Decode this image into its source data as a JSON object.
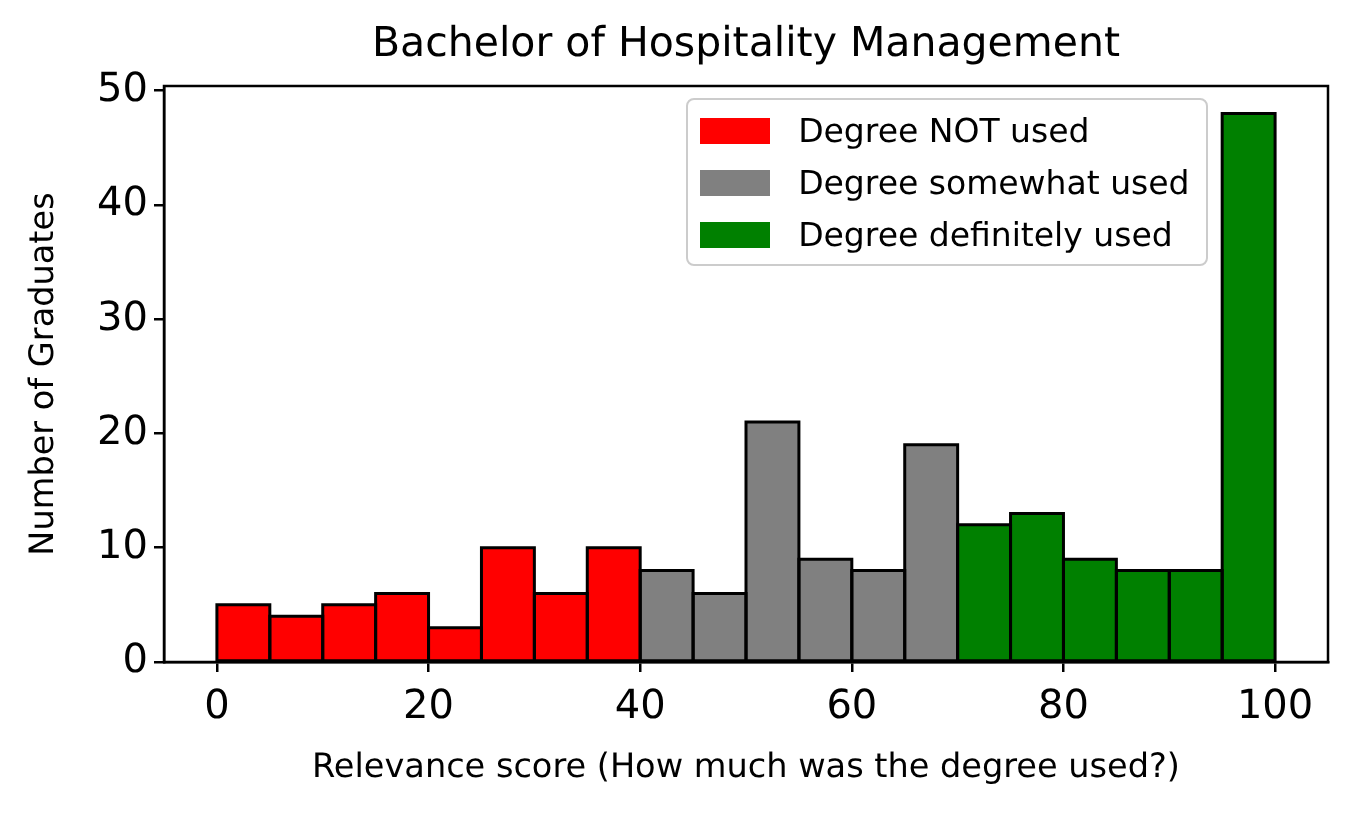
{
  "chart_data": {
    "type": "histogram",
    "title": "Bachelor of Hospitality Management",
    "xlabel": "Relevance score (How much was the degree used?)",
    "ylabel": "Number of Graduates",
    "bins": [
      0,
      5,
      10,
      15,
      20,
      25,
      30,
      35,
      40,
      45,
      50,
      55,
      60,
      65,
      70,
      75,
      80,
      85,
      90,
      95,
      100
    ],
    "series": [
      {
        "name": "Degree NOT used",
        "color": "#ff0000",
        "values": [
          5,
          4,
          5,
          6,
          3,
          10,
          6,
          10,
          null,
          null,
          null,
          null,
          null,
          null,
          null,
          null,
          null,
          null,
          null,
          null
        ]
      },
      {
        "name": "Degree somewhat used",
        "color": "#808080",
        "values": [
          null,
          null,
          null,
          null,
          null,
          null,
          null,
          null,
          8,
          6,
          21,
          9,
          8,
          19,
          null,
          null,
          null,
          null,
          null,
          null
        ]
      },
      {
        "name": "Degree definitely used",
        "color": "#008000",
        "values": [
          null,
          null,
          null,
          null,
          null,
          null,
          null,
          null,
          null,
          null,
          null,
          null,
          null,
          null,
          12,
          13,
          9,
          8,
          8,
          48
        ]
      }
    ],
    "xlim": [
      -5,
      105
    ],
    "ylim": [
      0,
      50.4
    ],
    "xticks": [
      0,
      20,
      40,
      60,
      80,
      100
    ],
    "yticks": [
      0,
      10,
      20,
      30,
      40,
      50
    ],
    "legend": "top right",
    "grid": false
  }
}
